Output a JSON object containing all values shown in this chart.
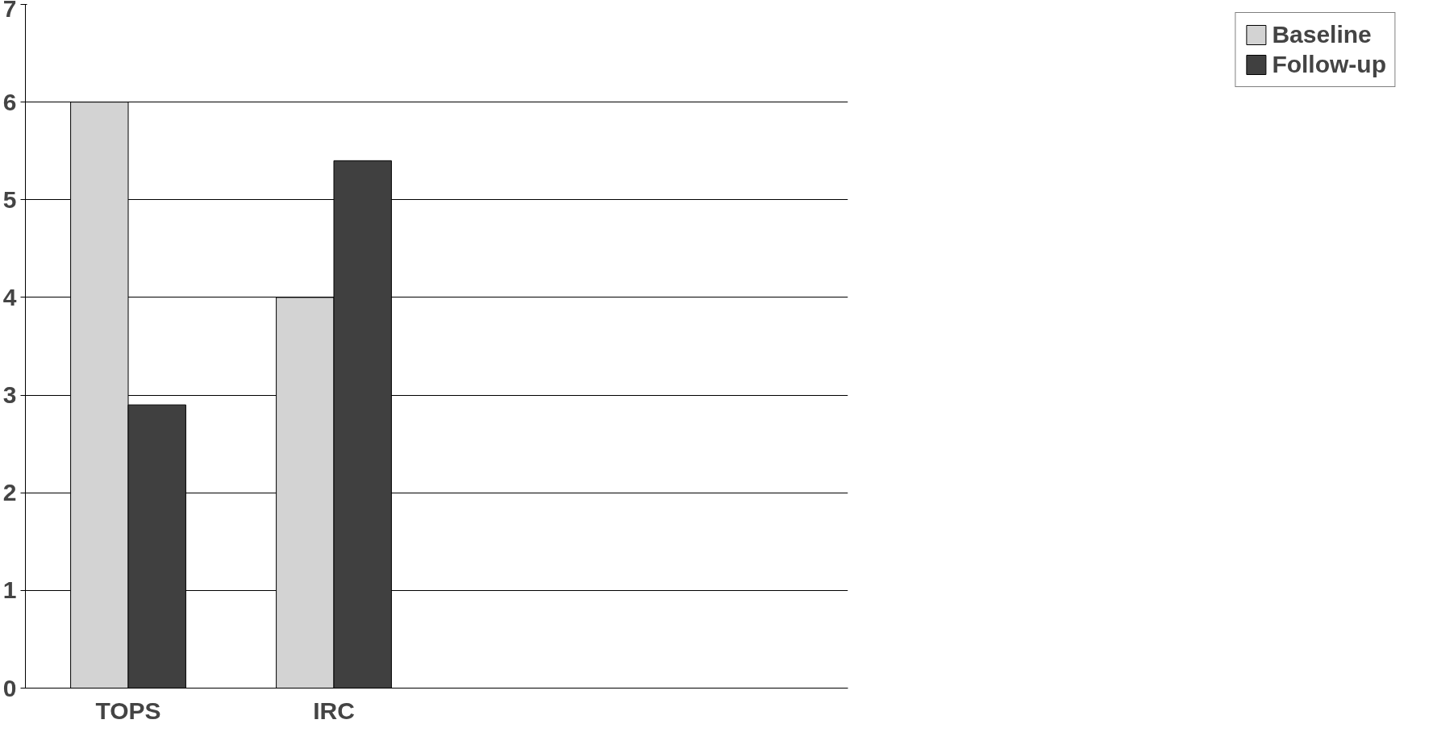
{
  "chart_data": {
    "type": "bar",
    "categories": [
      "TOPS",
      "IRC",
      null,
      null
    ],
    "series": [
      {
        "name": "Baseline",
        "color": "#d3d3d3",
        "values": [
          6,
          4,
          null,
          null
        ]
      },
      {
        "name": "Follow-up",
        "color": "#404040",
        "values": [
          2.9,
          5.4,
          null,
          null
        ]
      }
    ],
    "ylim": [
      0,
      7
    ],
    "yticks": [
      0,
      1,
      2,
      3,
      4,
      5,
      6,
      7
    ],
    "grid": "y",
    "legend": "right"
  }
}
